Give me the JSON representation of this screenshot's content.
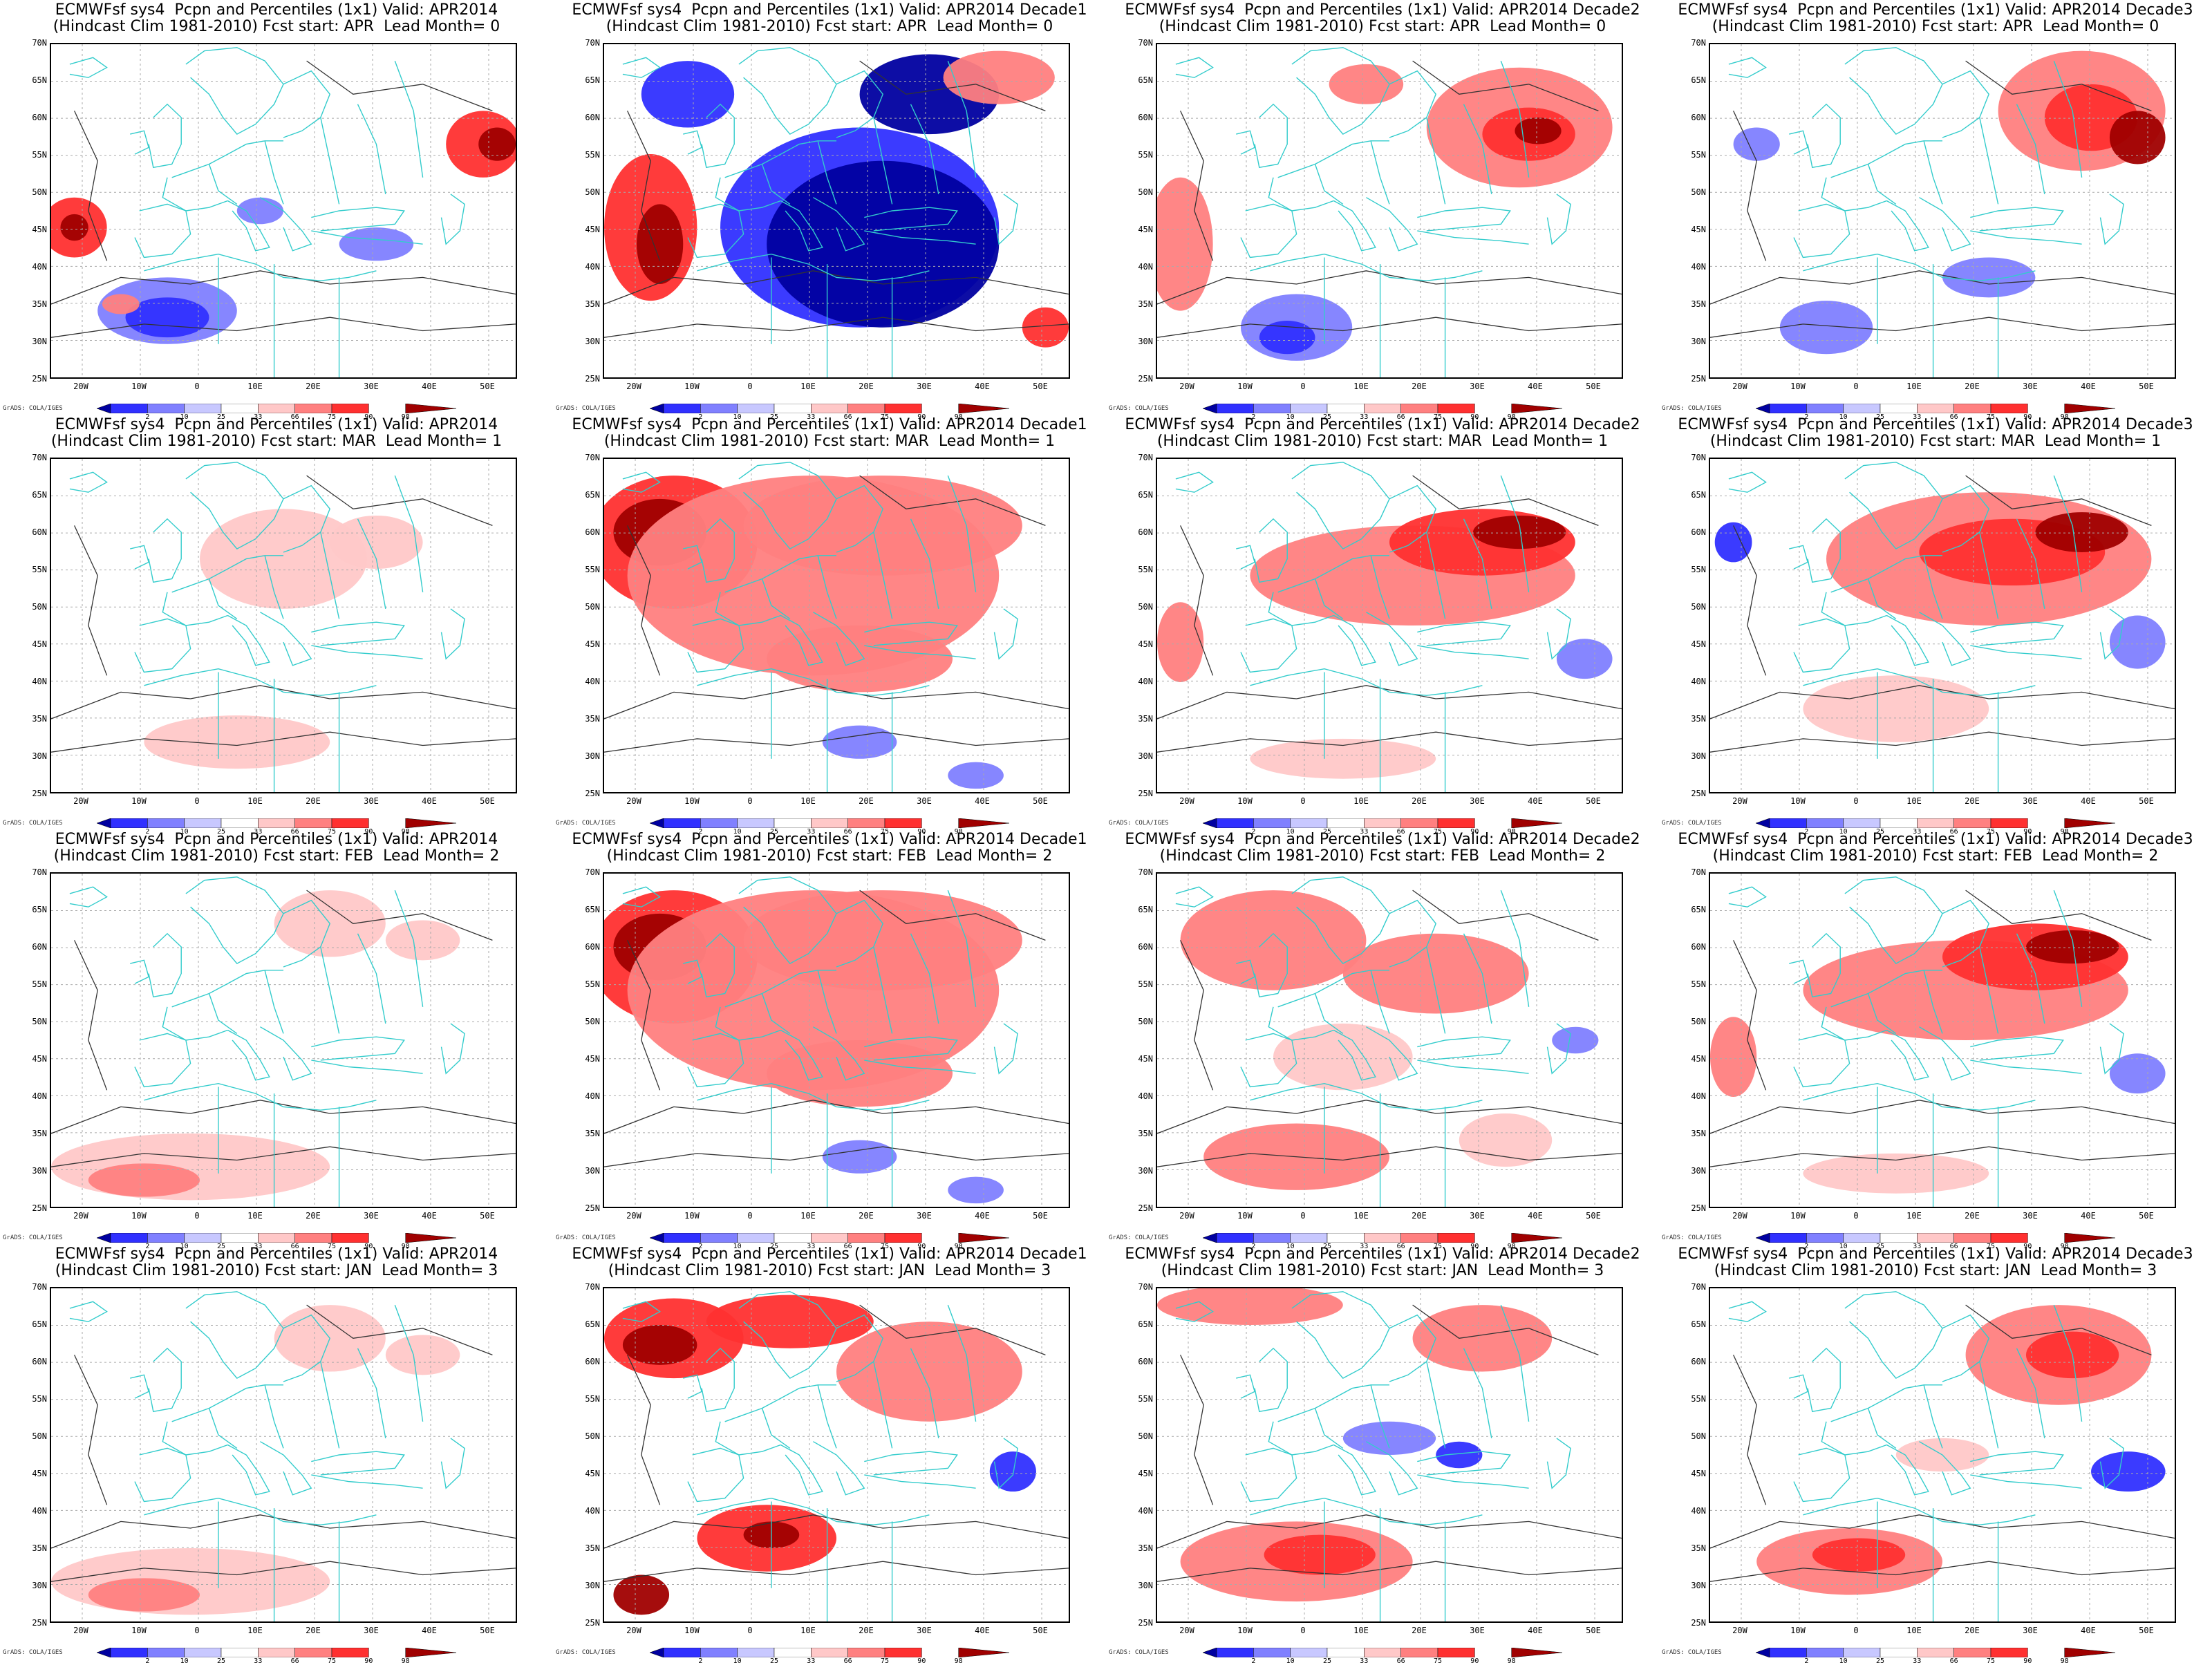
{
  "panels": [
    {
      "line1": "ECMWFsf sys4  Pcpn and Percentiles (1x1) Valid: APR2014",
      "line2": "(Hindcast Clim 1981-2010) Fcst start: APR  Lead Month= 0",
      "pattern": "mixed-south-blue"
    },
    {
      "line1": "ECMWFsf sys4  Pcpn and Percentiles (1x1) Valid: APR2014 Decade1",
      "line2": "(Hindcast Clim 1981-2010) Fcst start: APR  Lead Month= 0",
      "pattern": "strong-blue"
    },
    {
      "line1": "ECMWFsf sys4  Pcpn and Percentiles (1x1) Valid: APR2014 Decade2",
      "line2": "(Hindcast Clim 1981-2010) Fcst start: APR  Lead Month= 0",
      "pattern": "red-east"
    },
    {
      "line1": "ECMWFsf sys4  Pcpn and Percentiles (1x1) Valid: APR2014 Decade3",
      "line2": "(Hindcast Clim 1981-2010) Fcst start: APR  Lead Month= 0",
      "pattern": "red-east-blue-south"
    },
    {
      "line1": "ECMWFsf sys4  Pcpn and Percentiles (1x1) Valid: APR2014",
      "line2": "(Hindcast Clim 1981-2010) Fcst start: MAR  Lead Month= 1",
      "pattern": "faint"
    },
    {
      "line1": "ECMWFsf sys4  Pcpn and Percentiles (1x1) Valid: APR2014 Decade1",
      "line2": "(Hindcast Clim 1981-2010) Fcst start: MAR  Lead Month= 1",
      "pattern": "red-wide"
    },
    {
      "line1": "ECMWFsf sys4  Pcpn and Percentiles (1x1) Valid: APR2014 Decade2",
      "line2": "(Hindcast Clim 1981-2010) Fcst start: MAR  Lead Month= 1",
      "pattern": "red-band"
    },
    {
      "line1": "ECMWFsf sys4  Pcpn and Percentiles (1x1) Valid: APR2014 Decade3",
      "line2": "(Hindcast Clim 1981-2010) Fcst start: MAR  Lead Month= 1",
      "pattern": "red-east-strong"
    },
    {
      "line1": "ECMWFsf sys4  Pcpn and Percentiles (1x1) Valid: APR2014",
      "line2": "(Hindcast Clim 1981-2010) Fcst start: FEB  Lead Month= 2",
      "pattern": "faint-south"
    },
    {
      "line1": "ECMWFsf sys4  Pcpn and Percentiles (1x1) Valid: APR2014 Decade1",
      "line2": "(Hindcast Clim 1981-2010) Fcst start: FEB  Lead Month= 2",
      "pattern": "red-wide"
    },
    {
      "line1": "ECMWFsf sys4  Pcpn and Percentiles (1x1) Valid: APR2014 Decade2",
      "line2": "(Hindcast Clim 1981-2010) Fcst start: FEB  Lead Month= 2",
      "pattern": "red-patchy"
    },
    {
      "line1": "ECMWFsf sys4  Pcpn and Percentiles (1x1) Valid: APR2014 Decade3",
      "line2": "(Hindcast Clim 1981-2010) Fcst start: FEB  Lead Month= 2",
      "pattern": "red-band"
    },
    {
      "line1": "ECMWFsf sys4  Pcpn and Percentiles (1x1) Valid: APR2014",
      "line2": "(Hindcast Clim 1981-2010) Fcst start: JAN  Lead Month= 3",
      "pattern": "faint-south"
    },
    {
      "line1": "ECMWFsf sys4  Pcpn and Percentiles (1x1) Valid: APR2014 Decade1",
      "line2": "(Hindcast Clim 1981-2010) Fcst start: JAN  Lead Month= 3",
      "pattern": "red-nw-south"
    },
    {
      "line1": "ECMWFsf sys4  Pcpn and Percentiles (1x1) Valid: APR2014 Decade2",
      "line2": "(Hindcast Clim 1981-2010) Fcst start: JAN  Lead Month= 3",
      "pattern": "red-south"
    },
    {
      "line1": "ECMWFsf sys4  Pcpn and Percentiles (1x1) Valid: APR2014 Decade3",
      "line2": "(Hindcast Clim 1981-2010) Fcst start: JAN  Lead Month= 3",
      "pattern": "red-east-south"
    }
  ],
  "lat_labels": [
    "70N",
    "65N",
    "60N",
    "55N",
    "50N",
    "45N",
    "40N",
    "35N",
    "30N",
    "25N"
  ],
  "lon_labels": [
    "20W",
    "10W",
    "0",
    "10E",
    "20E",
    "30E",
    "40E",
    "50E"
  ],
  "colorbar": {
    "ticks": [
      "2",
      "10",
      "25",
      "33",
      "66",
      "75",
      "90",
      "98"
    ],
    "colors": [
      "#0000a0",
      "#3030ff",
      "#8080ff",
      "#c8c8ff",
      "#ffffff",
      "#ffc8c8",
      "#ff8080",
      "#ff3030",
      "#a00000"
    ]
  },
  "credit": "GrADS: COLA/IGES",
  "colors": {
    "coast": "#33cccc",
    "contour": "#333333",
    "grid": "#aaaaaa"
  }
}
